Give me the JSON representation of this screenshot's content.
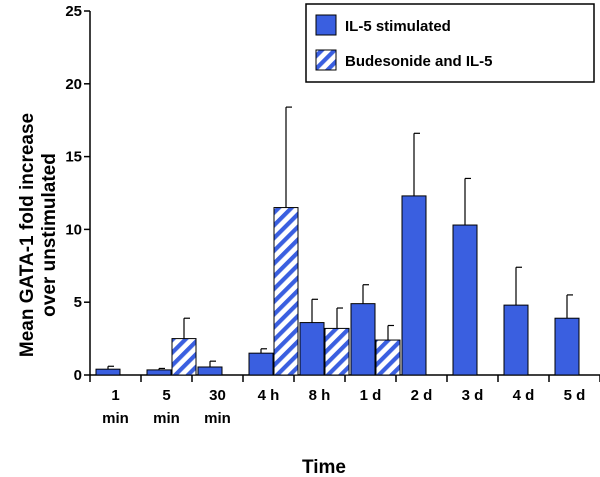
{
  "chart_data": {
    "type": "bar",
    "xlabel": "Time",
    "ylabel_lines": [
      "Mean GATA-1 fold increase",
      "over unstimulated"
    ],
    "ylim": [
      0,
      25
    ],
    "yticks": [
      0,
      5,
      10,
      15,
      20,
      25
    ],
    "ytick_labels": [
      "0",
      "5",
      "10",
      "15",
      "20",
      "25"
    ],
    "categories": [
      [
        "1",
        "min"
      ],
      [
        "5",
        "min"
      ],
      [
        "30",
        "min"
      ],
      [
        "4 h"
      ],
      [
        "8 h"
      ],
      [
        "1 d"
      ],
      [
        "2 d"
      ],
      [
        "3 d"
      ],
      [
        "4 d"
      ],
      [
        "5 d"
      ]
    ],
    "series": [
      {
        "name": "IL-5 stimulated",
        "color": "#3a5fe0",
        "pattern": "solid",
        "values": [
          0.4,
          0.35,
          0.55,
          1.5,
          3.6,
          4.9,
          12.3,
          10.3,
          4.8,
          3.9
        ],
        "errors": [
          0.2,
          0.1,
          0.4,
          0.3,
          1.6,
          1.3,
          4.3,
          3.2,
          2.6,
          1.6
        ]
      },
      {
        "name": "Budesonide and IL-5",
        "color": "#3a5fe0",
        "pattern": "hatch",
        "values": [
          null,
          2.5,
          null,
          11.5,
          3.2,
          2.4,
          null,
          null,
          null,
          null
        ],
        "errors": [
          null,
          1.4,
          null,
          6.9,
          1.4,
          1.0,
          null,
          null,
          null,
          null
        ]
      }
    ],
    "legend_position": "top-right"
  }
}
